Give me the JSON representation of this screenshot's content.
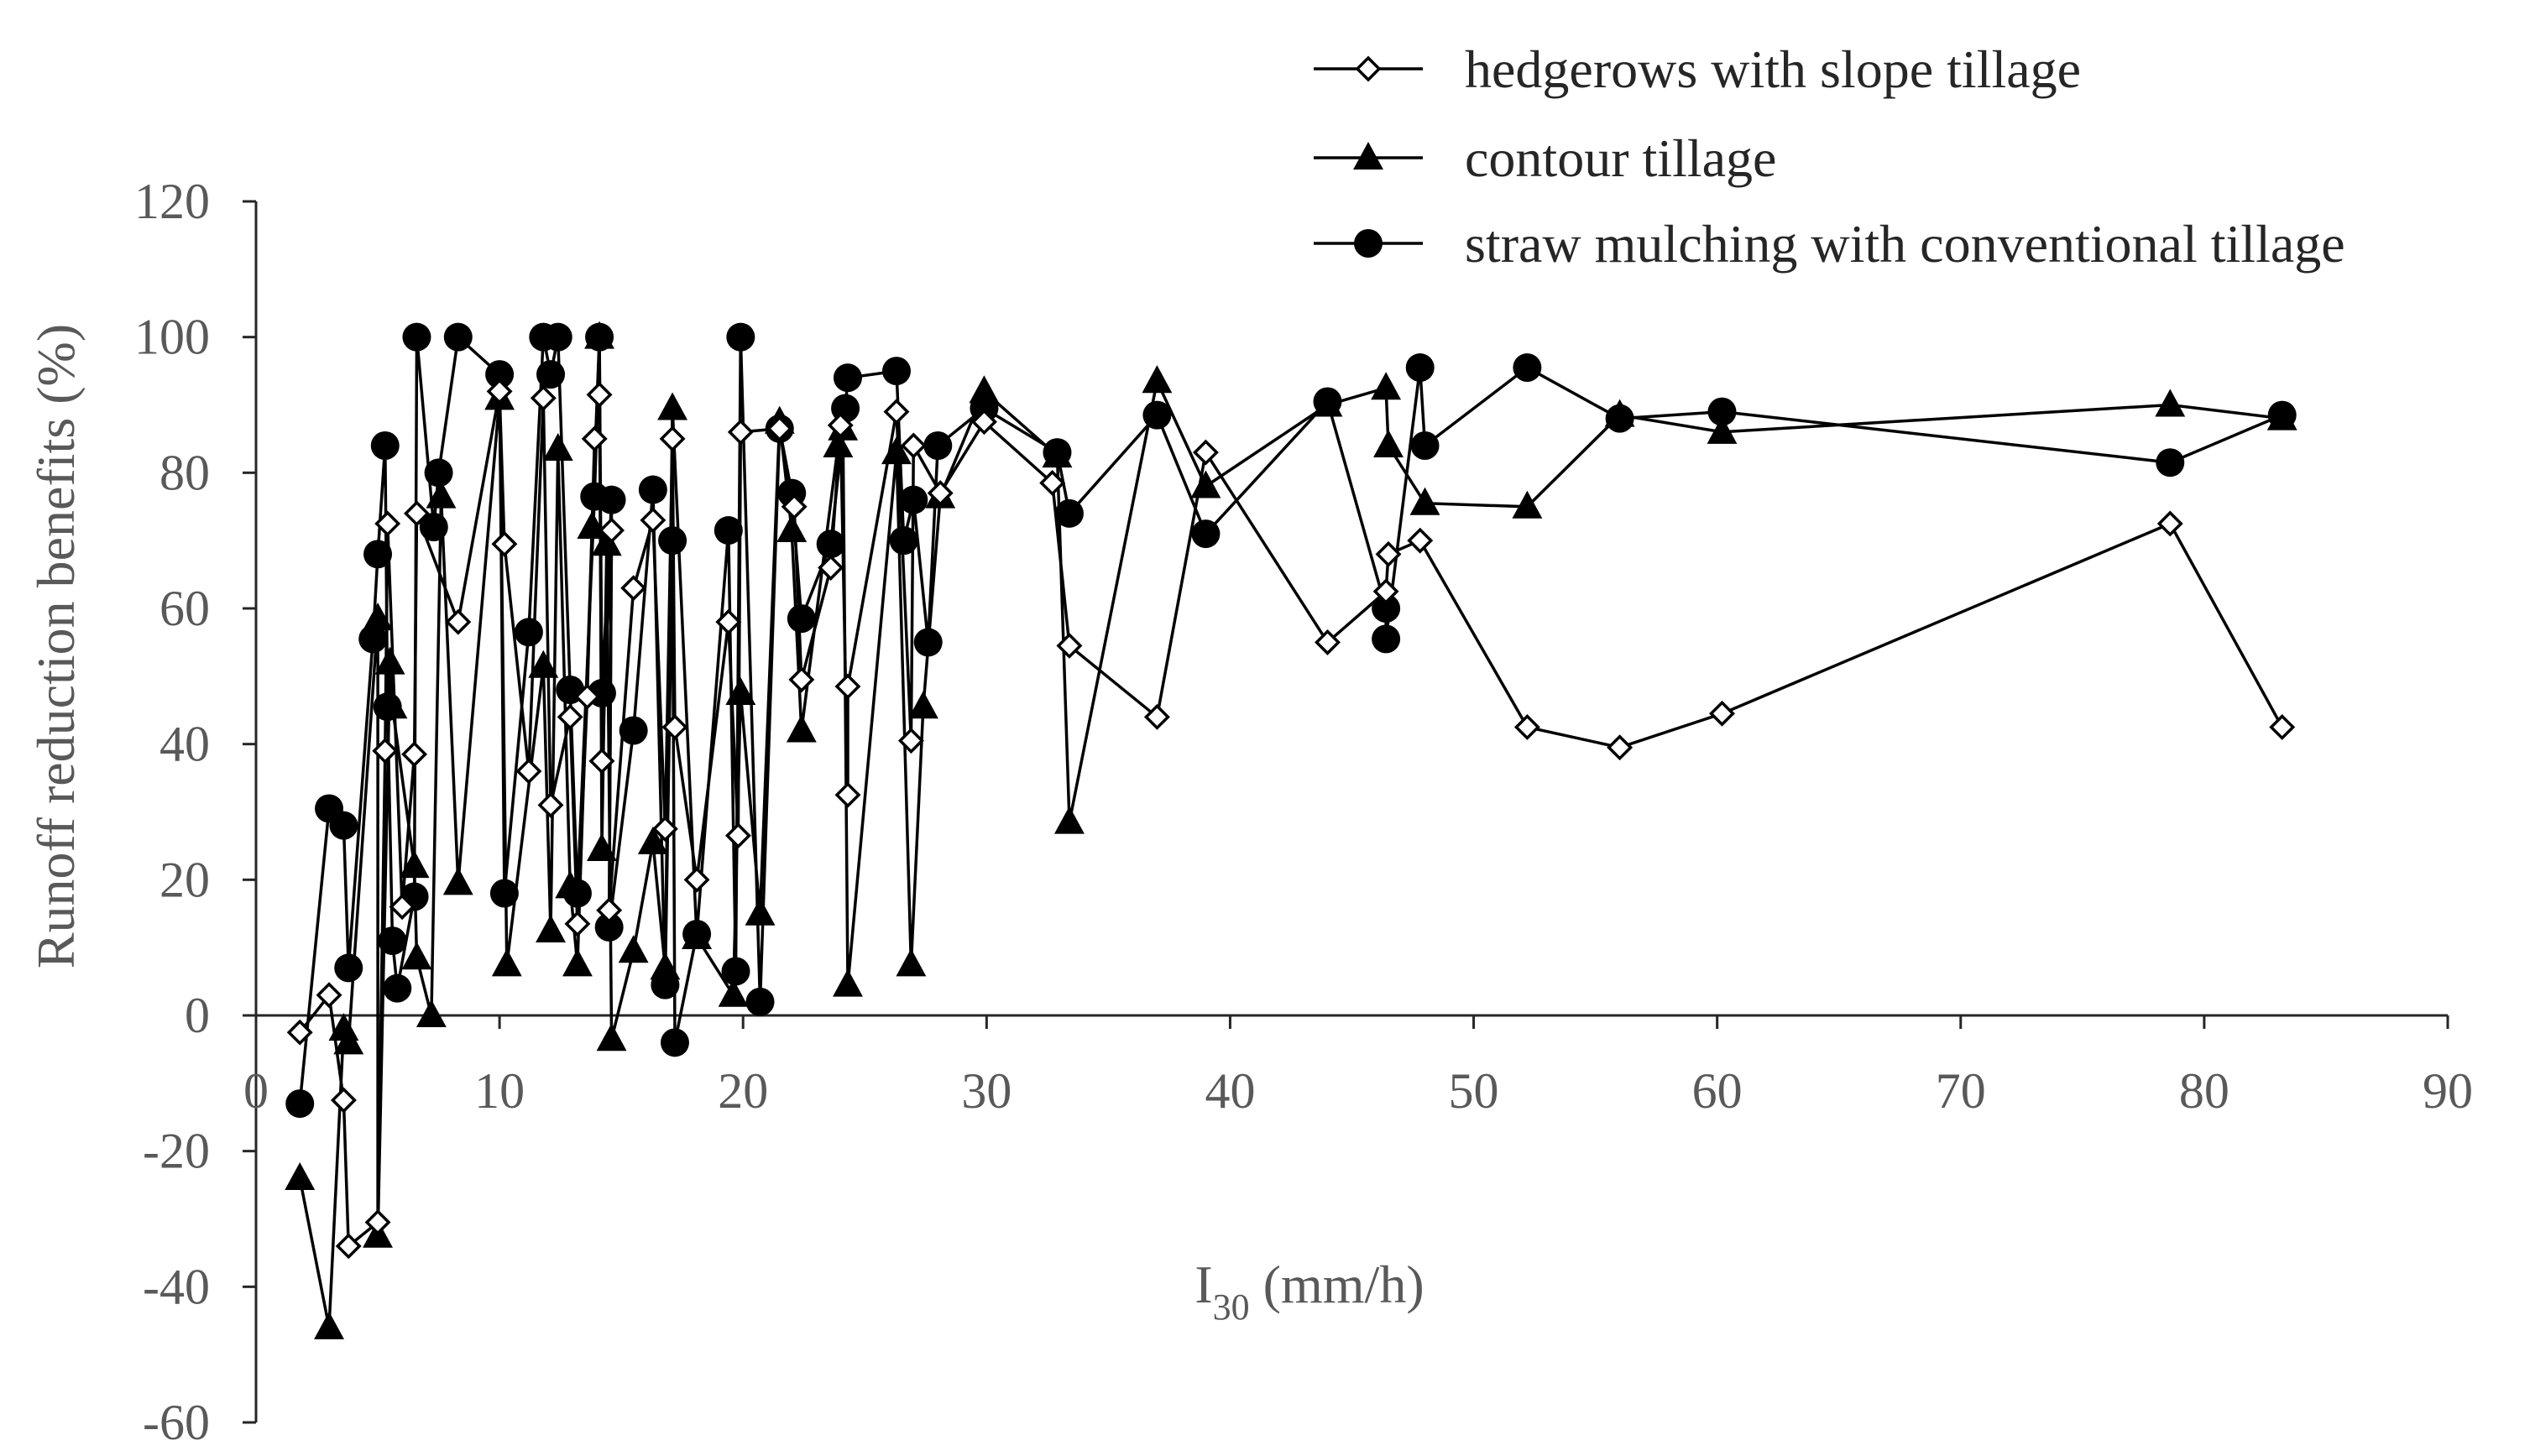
{
  "chart_data": {
    "type": "line",
    "title": "",
    "xlabel_main": "I",
    "xlabel_sub": "30",
    "xlabel_unit": " (mm/h)",
    "ylabel": "Runoff reduction benefits (%)",
    "xlim": [
      0,
      90
    ],
    "ylim": [
      -60,
      120
    ],
    "xticks": [
      0,
      10,
      20,
      30,
      40,
      50,
      60,
      70,
      80,
      90
    ],
    "yticks": [
      -60,
      -40,
      -20,
      0,
      20,
      40,
      60,
      80,
      100,
      120
    ],
    "grid": false,
    "legend_position": "top-right",
    "series": [
      {
        "name": "hedgerows with slope tillage",
        "marker": "open-diamond",
        "points": [
          [
            1.8,
            -2.5
          ],
          [
            3.0,
            3.0
          ],
          [
            3.6,
            -12.5
          ],
          [
            3.8,
            -34.0
          ],
          [
            5.0,
            -30.5
          ],
          [
            5.3,
            39.0
          ],
          [
            5.4,
            72.5
          ],
          [
            6.0,
            16.0
          ],
          [
            6.5,
            38.5
          ],
          [
            6.6,
            74.0
          ],
          [
            8.3,
            58.0
          ],
          [
            10.0,
            92.0
          ],
          [
            10.2,
            69.5
          ],
          [
            11.2,
            36.0
          ],
          [
            11.8,
            91.0
          ],
          [
            12.1,
            31.0
          ],
          [
            12.9,
            44.0
          ],
          [
            13.2,
            13.5
          ],
          [
            13.6,
            47.0
          ],
          [
            13.9,
            85.0
          ],
          [
            14.1,
            91.5
          ],
          [
            14.2,
            37.5
          ],
          [
            14.6,
            71.5
          ],
          [
            14.5,
            15.5
          ],
          [
            15.5,
            63.0
          ],
          [
            16.3,
            73.0
          ],
          [
            16.8,
            27.5
          ],
          [
            17.1,
            85.0
          ],
          [
            17.2,
            42.5
          ],
          [
            18.1,
            20.0
          ],
          [
            19.4,
            58.0
          ],
          [
            19.8,
            26.5
          ],
          [
            19.9,
            86.0
          ],
          [
            21.5,
            86.5
          ],
          [
            22.1,
            75.0
          ],
          [
            22.4,
            49.5
          ],
          [
            23.6,
            66.0
          ],
          [
            24.0,
            87.0
          ],
          [
            24.3,
            32.5
          ],
          [
            24.3,
            48.5
          ],
          [
            26.3,
            89.0
          ],
          [
            26.9,
            40.5
          ],
          [
            27.0,
            84.0
          ],
          [
            28.1,
            77.0
          ],
          [
            29.9,
            87.5
          ],
          [
            32.7,
            78.5
          ],
          [
            33.4,
            54.5
          ],
          [
            37.0,
            44.0
          ],
          [
            39.0,
            83.0
          ],
          [
            44.0,
            55.0
          ],
          [
            46.4,
            62.5
          ],
          [
            46.5,
            68.0
          ],
          [
            47.8,
            70.0
          ],
          [
            52.2,
            42.5
          ],
          [
            56.0,
            39.5
          ],
          [
            60.2,
            44.5
          ],
          [
            78.6,
            72.5
          ],
          [
            83.2,
            42.5
          ]
        ]
      },
      {
        "name": "contour tillage",
        "marker": "filled-triangle",
        "points": [
          [
            1.8,
            -24.0
          ],
          [
            3.0,
            -46.0
          ],
          [
            3.6,
            -2.0
          ],
          [
            3.8,
            -4.0
          ],
          [
            5.0,
            58.5
          ],
          [
            5.0,
            -32.5
          ],
          [
            5.5,
            52.0
          ],
          [
            5.6,
            45.5
          ],
          [
            6.5,
            22.0
          ],
          [
            6.6,
            8.5
          ],
          [
            7.2,
            0.0
          ],
          [
            7.6,
            76.5
          ],
          [
            8.3,
            19.5
          ],
          [
            10.0,
            91.0
          ],
          [
            10.3,
            7.5
          ],
          [
            11.8,
            51.5
          ],
          [
            12.1,
            12.5
          ],
          [
            12.4,
            83.5
          ],
          [
            12.9,
            19.0
          ],
          [
            13.2,
            7.5
          ],
          [
            13.8,
            72.0
          ],
          [
            14.1,
            100.0
          ],
          [
            14.2,
            24.5
          ],
          [
            14.4,
            69.5
          ],
          [
            14.6,
            -3.5
          ],
          [
            15.5,
            9.5
          ],
          [
            16.3,
            25.5
          ],
          [
            16.8,
            7.0
          ],
          [
            17.1,
            89.5
          ],
          [
            18.1,
            11.5
          ],
          [
            19.6,
            3.0
          ],
          [
            19.9,
            47.5
          ],
          [
            20.7,
            15.0
          ],
          [
            21.5,
            87.5
          ],
          [
            22.0,
            71.5
          ],
          [
            22.4,
            42.0
          ],
          [
            23.9,
            84.0
          ],
          [
            24.1,
            86.5
          ],
          [
            24.3,
            4.5
          ],
          [
            26.3,
            83.0
          ],
          [
            26.9,
            7.5
          ],
          [
            27.4,
            45.5
          ],
          [
            28.1,
            76.5
          ],
          [
            29.9,
            92.0
          ],
          [
            32.9,
            82.5
          ],
          [
            33.4,
            28.5
          ],
          [
            37.0,
            93.5
          ],
          [
            39.0,
            78.0
          ],
          [
            44.0,
            90.0
          ],
          [
            46.4,
            92.5
          ],
          [
            46.5,
            84.0
          ],
          [
            48.0,
            75.5
          ],
          [
            52.2,
            75.0
          ],
          [
            56.0,
            88.5
          ],
          [
            60.2,
            86.0
          ],
          [
            78.6,
            90.0
          ],
          [
            83.2,
            88.0
          ]
        ]
      },
      {
        "name": "straw mulching with conventional tillage",
        "marker": "filled-circle",
        "points": [
          [
            1.8,
            -13.0
          ],
          [
            3.0,
            30.5
          ],
          [
            3.6,
            28.0
          ],
          [
            3.8,
            7.0
          ],
          [
            4.8,
            55.5
          ],
          [
            5.0,
            68.0
          ],
          [
            5.3,
            84.0
          ],
          [
            5.4,
            45.5
          ],
          [
            5.6,
            11.0
          ],
          [
            5.8,
            4.0
          ],
          [
            6.5,
            17.5
          ],
          [
            6.6,
            100.0
          ],
          [
            7.3,
            72.0
          ],
          [
            7.5,
            80.0
          ],
          [
            8.3,
            100.0
          ],
          [
            10.0,
            94.5
          ],
          [
            10.2,
            18.0
          ],
          [
            11.2,
            56.5
          ],
          [
            11.8,
            100.0
          ],
          [
            12.1,
            94.5
          ],
          [
            12.4,
            100.0
          ],
          [
            12.9,
            48.0
          ],
          [
            13.2,
            18.0
          ],
          [
            13.9,
            76.5
          ],
          [
            14.1,
            100.0
          ],
          [
            14.2,
            47.5
          ],
          [
            14.6,
            76.0
          ],
          [
            14.5,
            13.0
          ],
          [
            15.5,
            42.0
          ],
          [
            16.3,
            77.5
          ],
          [
            16.8,
            4.5
          ],
          [
            17.1,
            70.0
          ],
          [
            17.2,
            -4.0
          ],
          [
            18.1,
            12.0
          ],
          [
            19.4,
            71.5
          ],
          [
            19.7,
            6.5
          ],
          [
            19.9,
            100.0
          ],
          [
            20.7,
            2.0
          ],
          [
            21.5,
            86.5
          ],
          [
            22.0,
            77.0
          ],
          [
            22.4,
            58.5
          ],
          [
            23.6,
            69.5
          ],
          [
            24.2,
            89.5
          ],
          [
            24.3,
            94.0
          ],
          [
            26.3,
            95.0
          ],
          [
            26.6,
            70.0
          ],
          [
            27.0,
            76.0
          ],
          [
            27.6,
            55.0
          ],
          [
            28.0,
            84.0
          ],
          [
            29.9,
            89.5
          ],
          [
            32.9,
            83.0
          ],
          [
            33.4,
            74.0
          ],
          [
            37.0,
            88.5
          ],
          [
            39.0,
            71.0
          ],
          [
            44.0,
            90.5
          ],
          [
            46.4,
            60.0
          ],
          [
            46.4,
            55.5
          ],
          [
            47.8,
            95.5
          ],
          [
            48.0,
            84.0
          ],
          [
            52.2,
            95.5
          ],
          [
            56.0,
            88.0
          ],
          [
            60.2,
            89.0
          ],
          [
            78.6,
            81.5
          ],
          [
            83.2,
            88.5
          ]
        ]
      }
    ]
  }
}
